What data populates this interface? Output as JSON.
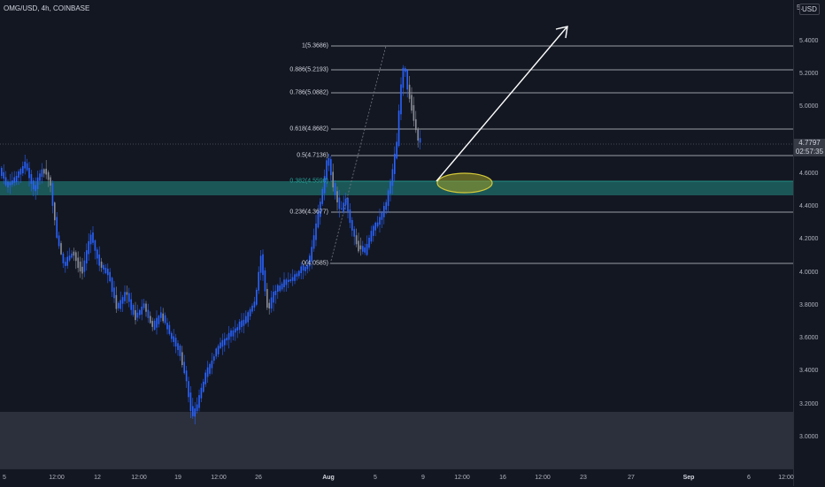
{
  "header": {
    "symbol": "OMG/USD, 4h, COINBASE"
  },
  "price_axis": {
    "currency": "USD",
    "cut_label": "5.",
    "ticks": [
      "5.4000",
      "5.2000",
      "5.0000",
      "4.6000",
      "4.4000",
      "4.2000",
      "4.0000",
      "3.8000",
      "3.6000",
      "3.4000",
      "3.2000",
      "3.0000"
    ],
    "current_price": "4.7797",
    "countdown": "02:57:35"
  },
  "time_axis": {
    "ticks": [
      "5",
      "12:00",
      "12",
      "12:00",
      "19",
      "12:00",
      "26",
      "Aug",
      "5",
      "9",
      "12:00",
      "16",
      "12:00",
      "23",
      "27",
      "Sep",
      "6",
      "12:00"
    ],
    "bold": [
      "Aug",
      "Sep"
    ]
  },
  "fib_levels": [
    {
      "label": "1(5.3686)",
      "value": 5.3686
    },
    {
      "label": "0.886(5.2193)",
      "value": 5.2193
    },
    {
      "label": "0.786(5.0882)",
      "value": 5.0882
    },
    {
      "label": "0.618(4.8682)",
      "value": 4.8682
    },
    {
      "label": "0.5(4.7136)",
      "value": 4.7136
    },
    {
      "label": "0.382(4.5590)",
      "value": 4.559,
      "highlight": true
    },
    {
      "label": "0.236(4.3677)",
      "value": 4.3677
    },
    {
      "label": "0(4.0585)",
      "value": 4.0585
    }
  ],
  "colors": {
    "bg": "#131722",
    "candle_up": "#2962ff",
    "candle_down": "#8a8d96",
    "zone": "#26a69a",
    "ellipse": "#d4c93a",
    "arrow": "#ffffff",
    "support_box": "#363a45"
  }
}
